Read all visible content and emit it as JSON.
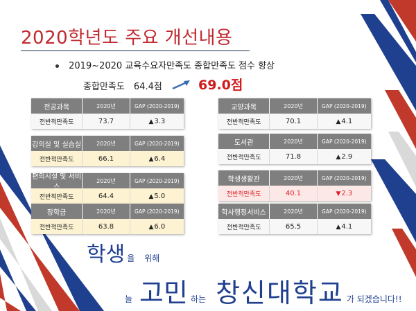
{
  "title": "2020학년도 주요 개선내용",
  "bullet": "2019~2020 교육수요자만족도 종합만족도 점수 향상",
  "summary": {
    "label": "종합만족도",
    "before": "64.4점",
    "after": "69.0점"
  },
  "columns": {
    "year": "2020년",
    "gap": "GAP (2020-2019)"
  },
  "cards_left": [
    {
      "name": "전공과목",
      "row_label": "전반적만족도",
      "value": "73.7",
      "gap": "3.3",
      "direction": "up",
      "style": "white"
    },
    {
      "name": "강의실 및 실습실",
      "row_label": "전반적만족도",
      "value": "66.1",
      "gap": "6.4",
      "direction": "up",
      "style": "yellow"
    },
    {
      "name": "편의시설 및 서비스",
      "row_label": "전반적만족도",
      "value": "64.4",
      "gap": "5.0",
      "direction": "up",
      "style": "yellow"
    },
    {
      "name": "장학금",
      "row_label": "전반적만족도",
      "value": "63.8",
      "gap": "6.0",
      "direction": "up",
      "style": "yellow"
    }
  ],
  "cards_right": [
    {
      "name": "교양과목",
      "row_label": "전반적만족도",
      "value": "70.1",
      "gap": "4.1",
      "direction": "up",
      "style": "white"
    },
    {
      "name": "도서관",
      "row_label": "전반적만족도",
      "value": "71.8",
      "gap": "2.9",
      "direction": "up",
      "style": "white"
    },
    {
      "name": "학생생활관",
      "row_label": "전반적만족도",
      "value": "40.1",
      "gap": "2.3",
      "direction": "down",
      "style": "pink"
    },
    {
      "name": "학사행정서비스",
      "row_label": "전반적만족도",
      "value": "65.5",
      "gap": "4.1",
      "direction": "up",
      "style": "white"
    }
  ],
  "slogan": {
    "w1": "학생",
    "w2": "을",
    "w3": "위해",
    "w4": "늘",
    "w5": "고민",
    "w6": "하는",
    "w7": "창신대학교",
    "w8": "가 되겠습니다!!"
  },
  "colors": {
    "title": "#c02b30",
    "header": "#7f7f7f",
    "accent_red": "#d11a1a",
    "accent_blue": "#1f3f8f"
  },
  "icons": {
    "up": "▲",
    "down": "▼",
    "arrow": "arrow-up-right-icon"
  }
}
